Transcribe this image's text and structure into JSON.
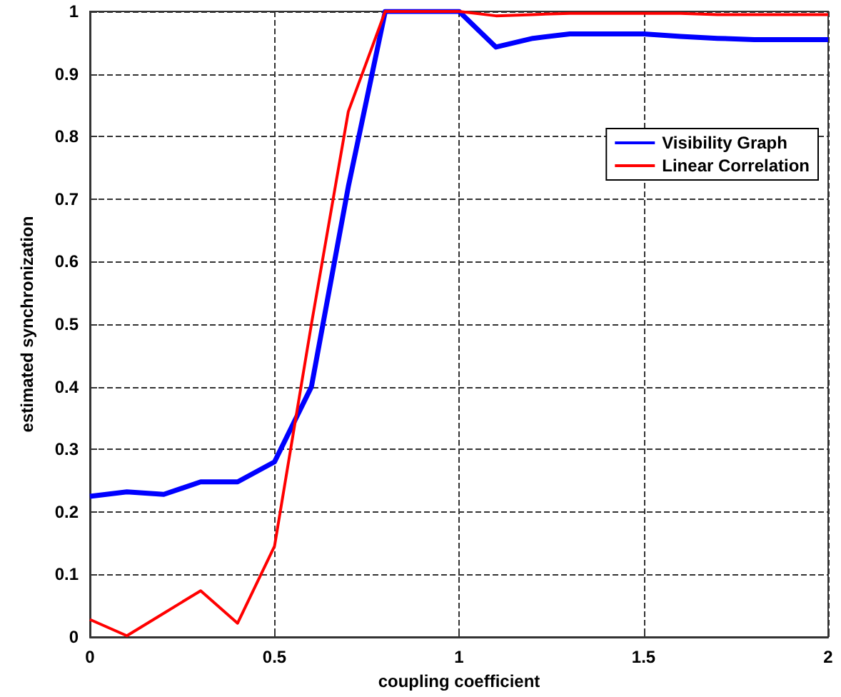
{
  "chart_data": {
    "type": "line",
    "xlabel": "coupling coefficient",
    "ylabel": "estimated synchronization",
    "xlim": [
      0,
      2
    ],
    "xticks": [
      0,
      0.5,
      1,
      1.5,
      2
    ],
    "ylim": [
      0,
      1
    ],
    "yticks": [
      0,
      0.1,
      0.2,
      0.3,
      0.4,
      0.5,
      0.6,
      0.7,
      0.8,
      0.9,
      1
    ],
    "grid": true,
    "legend": "top right",
    "marker": "none",
    "x": [
      0,
      0.1,
      0.2,
      0.3,
      0.4,
      0.5,
      0.6,
      0.7,
      0.8,
      0.9,
      1,
      1.1,
      1.2,
      1.3,
      1.4,
      1.5,
      1.6,
      1.7,
      1.8,
      1.9,
      2
    ],
    "series": [
      {
        "name": "Visibility Graph",
        "color": "#0000ff",
        "values": [
          0.225,
          0.232,
          0.228,
          0.248,
          0.248,
          0.28,
          0.4,
          0.72,
          1,
          1,
          1,
          0.943,
          0.957,
          0.964,
          0.964,
          0.964,
          0.96,
          0.957,
          0.955,
          0.955,
          0.955
        ]
      },
      {
        "name": "Linear Correlation",
        "color": "#ff0000",
        "values": [
          0.028,
          0.002,
          0.038,
          0.074,
          0.022,
          0.145,
          0.5,
          0.84,
          1,
          1,
          1,
          0.993,
          0.995,
          0.997,
          0.997,
          0.997,
          0.997,
          0.995,
          0.995,
          0.995,
          0.995
        ]
      }
    ]
  }
}
